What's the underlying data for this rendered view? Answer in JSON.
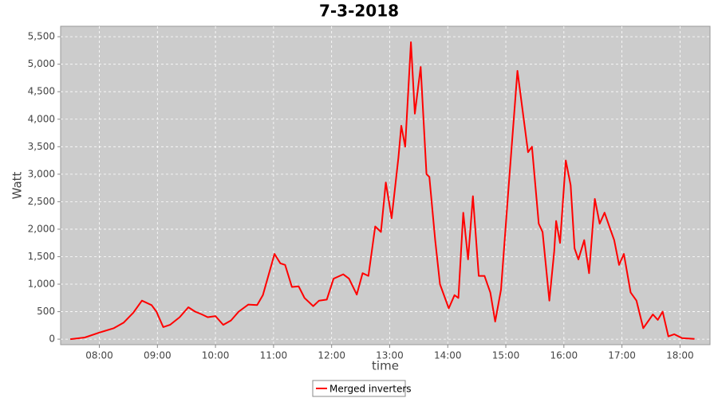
{
  "chart_data": {
    "type": "line",
    "title": "7-3-2018",
    "x_label": "time",
    "y_label": "Watt",
    "x": [
      "07:30",
      "07:45",
      "08:00",
      "08:15",
      "08:25",
      "08:35",
      "08:44",
      "08:54",
      "08:59",
      "09:06",
      "09:13",
      "09:23",
      "09:32",
      "09:39",
      "09:46",
      "09:52",
      "10:00",
      "10:08",
      "10:16",
      "10:24",
      "10:34",
      "10:43",
      "10:49",
      "11:01",
      "11:07",
      "11:12",
      "11:19",
      "11:26",
      "11:32",
      "11:41",
      "11:47",
      "11:55",
      "12:02",
      "12:12",
      "12:18",
      "12:26",
      "12:32",
      "12:38",
      "12:45",
      "12:51",
      "12:56",
      "13:02",
      "13:09",
      "13:12",
      "13:16",
      "13:22",
      "13:26",
      "13:32",
      "13:38",
      "13:41",
      "13:47",
      "13:52",
      "14:01",
      "14:07",
      "14:11",
      "14:16",
      "14:21",
      "14:26",
      "14:32",
      "14:38",
      "14:44",
      "14:49",
      "14:55",
      "15:03",
      "15:12",
      "15:17",
      "15:23",
      "15:27",
      "15:34",
      "15:38",
      "15:45",
      "15:50",
      "15:52",
      "15:56",
      "16:02",
      "16:07",
      "16:11",
      "16:15",
      "16:21",
      "16:26",
      "16:32",
      "16:37",
      "16:42",
      "16:48",
      "16:52",
      "16:57",
      "17:02",
      "17:09",
      "17:15",
      "17:22",
      "17:32",
      "17:37",
      "17:42",
      "17:48",
      "17:54",
      "18:02",
      "18:15"
    ],
    "series": [
      {
        "name": "Merged inverters",
        "color": "#ff0000",
        "values": [
          0,
          30,
          120,
          200,
          300,
          480,
          700,
          620,
          500,
          220,
          260,
          400,
          580,
          500,
          450,
          400,
          420,
          260,
          340,
          500,
          630,
          620,
          800,
          1550,
          1380,
          1350,
          950,
          960,
          750,
          600,
          700,
          720,
          1100,
          1180,
          1100,
          810,
          1200,
          1150,
          2050,
          1950,
          2850,
          2200,
          3300,
          3880,
          3500,
          5400,
          4100,
          4950,
          3000,
          2950,
          1800,
          1000,
          560,
          800,
          750,
          2300,
          1450,
          2600,
          1150,
          1150,
          850,
          320,
          900,
          2800,
          4880,
          4200,
          3400,
          3500,
          2100,
          1950,
          700,
          1600,
          2150,
          1750,
          3250,
          2800,
          1650,
          1450,
          1800,
          1200,
          2550,
          2100,
          2300,
          2000,
          1800,
          1350,
          1550,
          850,
          700,
          200,
          450,
          350,
          500,
          50,
          90,
          20,
          5
        ]
      }
    ],
    "xlim": [
      "07:20",
      "18:31"
    ],
    "xticks": [
      "08:00",
      "09:00",
      "10:00",
      "11:00",
      "12:00",
      "13:00",
      "14:00",
      "15:00",
      "16:00",
      "17:00",
      "18:00"
    ],
    "ylim": [
      -100,
      5690
    ],
    "yticks": [
      0,
      500,
      {
        "value": 1000,
        "label": "1,000"
      },
      {
        "value": 1500,
        "label": "1,500"
      },
      {
        "value": 2000,
        "label": "2,000"
      },
      {
        "value": 2500,
        "label": "2,500"
      },
      {
        "value": 3000,
        "label": "3,000"
      },
      {
        "value": 3500,
        "label": "3,500"
      },
      {
        "value": 4000,
        "label": "4,000"
      },
      {
        "value": 4500,
        "label": "4,500"
      },
      {
        "value": 5000,
        "label": "5,000"
      },
      {
        "value": 5500,
        "label": "5,500"
      }
    ],
    "grid": true,
    "legend": "bottom",
    "plot_background": "#cccccc"
  }
}
